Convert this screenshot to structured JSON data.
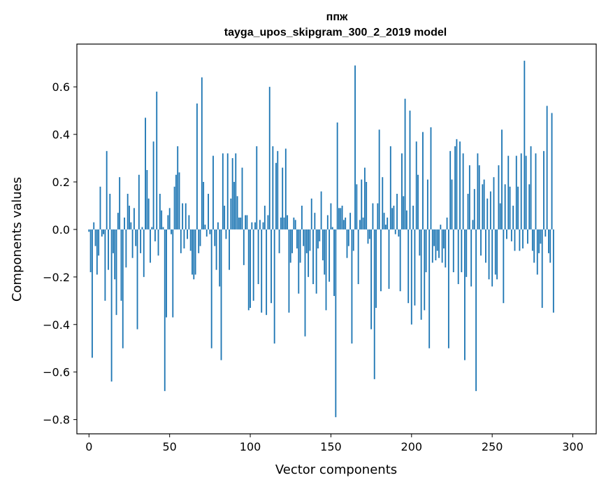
{
  "chart_data": {
    "type": "bar",
    "title": "ппж",
    "subtitle": "tayga_upos_skipgram_300_2_2019 model",
    "xlabel": "Vector components",
    "ylabel": "Components values",
    "xlim": [
      -7.5,
      314.5
    ],
    "ylim": [
      -0.86,
      0.78
    ],
    "xticks": [
      0,
      50,
      100,
      150,
      200,
      250,
      300
    ],
    "xtick_labels": [
      "0",
      "50",
      "100",
      "150",
      "200",
      "250",
      "300"
    ],
    "yticks": [
      -0.8,
      -0.6,
      -0.4,
      -0.2,
      0.0,
      0.2,
      0.4,
      0.6
    ],
    "ytick_labels": [
      "−0.8",
      "−0.6",
      "−0.4",
      "−0.2",
      "0.0",
      "0.2",
      "0.4",
      "0.6"
    ],
    "bar_color": "#1f77b4",
    "grid": false,
    "values": [
      -0.01,
      -0.18,
      -0.54,
      0.03,
      -0.07,
      -0.19,
      -0.11,
      0.18,
      -0.03,
      -0.02,
      -0.3,
      0.33,
      -0.17,
      0.15,
      -0.64,
      -0.1,
      -0.21,
      -0.36,
      0.07,
      0.22,
      -0.3,
      -0.5,
      0.05,
      -0.16,
      0.15,
      0.1,
      0.03,
      -0.12,
      0.09,
      -0.07,
      -0.42,
      0.23,
      -0.1,
      0.01,
      -0.2,
      0.47,
      0.25,
      0.13,
      -0.14,
      0.01,
      0.37,
      -0.05,
      0.58,
      -0.11,
      0.15,
      0.08,
      0.01,
      -0.68,
      -0.37,
      0.06,
      0.09,
      -0.02,
      -0.37,
      0.18,
      0.23,
      0.35,
      0.24,
      -0.1,
      0.11,
      -0.08,
      0.11,
      -0.04,
      0.06,
      -0.09,
      -0.19,
      -0.21,
      -0.19,
      0.53,
      -0.1,
      -0.07,
      0.64,
      0.2,
      0.02,
      -0.03,
      0.15,
      -0.02,
      -0.5,
      0.31,
      -0.07,
      -0.17,
      0.03,
      -0.24,
      -0.55,
      0.32,
      0.1,
      -0.04,
      0.32,
      -0.17,
      0.13,
      0.3,
      0.2,
      0.32,
      0.14,
      0.05,
      0.05,
      0.26,
      -0.15,
      0.06,
      0.06,
      -0.34,
      -0.33,
      0.03,
      -0.3,
      0.03,
      0.35,
      -0.23,
      0.04,
      -0.35,
      0.03,
      0.1,
      -0.36,
      0.06,
      0.6,
      -0.31,
      0.35,
      -0.48,
      0.28,
      0.33,
      -0.1,
      0.05,
      0.26,
      0.05,
      0.34,
      0.06,
      -0.35,
      -0.14,
      -0.1,
      0.05,
      0.04,
      -0.08,
      -0.27,
      -0.14,
      0.1,
      -0.07,
      -0.45,
      -0.1,
      -0.2,
      -0.09,
      0.13,
      -0.23,
      0.07,
      -0.27,
      -0.08,
      -0.05,
      0.16,
      -0.13,
      -0.19,
      -0.34,
      0.06,
      -0.22,
      0.11,
      0.01,
      -0.28,
      -0.79,
      0.45,
      0.09,
      0.09,
      0.1,
      0.04,
      0.05,
      -0.12,
      -0.07,
      0.07,
      -0.48,
      -0.09,
      0.69,
      0.19,
      -0.23,
      0.04,
      0.21,
      0.05,
      0.26,
      0.2,
      -0.06,
      -0.04,
      -0.42,
      0.11,
      -0.63,
      -0.33,
      0.11,
      0.42,
      -0.26,
      0.22,
      0.07,
      0.02,
      0.05,
      -0.25,
      0.35,
      0.09,
      0.1,
      -0.02,
      0.15,
      -0.03,
      -0.26,
      0.32,
      0.14,
      0.55,
      0.08,
      -0.31,
      0.5,
      -0.4,
      0.1,
      -0.32,
      0.37,
      0.23,
      -0.11,
      -0.38,
      0.41,
      -0.34,
      -0.18,
      0.21,
      -0.5,
      0.43,
      -0.14,
      -0.07,
      -0.13,
      -0.09,
      -0.12,
      0.02,
      -0.14,
      -0.08,
      -0.16,
      0.05,
      -0.5,
      0.33,
      0.21,
      -0.18,
      0.35,
      0.38,
      -0.23,
      0.37,
      -0.18,
      0.32,
      -0.55,
      -0.2,
      0.15,
      0.27,
      -0.24,
      0.04,
      0.17,
      -0.68,
      0.32,
      0.27,
      -0.11,
      0.19,
      0.21,
      -0.14,
      0.13,
      -0.21,
      0.16,
      -0.24,
      0.22,
      -0.19,
      -0.21,
      0.27,
      0.11,
      0.42,
      -0.31,
      0.19,
      -0.04,
      0.31,
      0.18,
      -0.05,
      0.1,
      -0.09,
      0.31,
      0.18,
      -0.09,
      0.32,
      -0.08,
      0.71,
      0.31,
      -0.06,
      0.19,
      0.35,
      -0.09,
      -0.14,
      0.32,
      -0.19,
      -0.1,
      -0.06,
      -0.33,
      0.33,
      -0.03,
      0.52,
      -0.1,
      -0.14,
      0.49,
      -0.35
    ]
  }
}
